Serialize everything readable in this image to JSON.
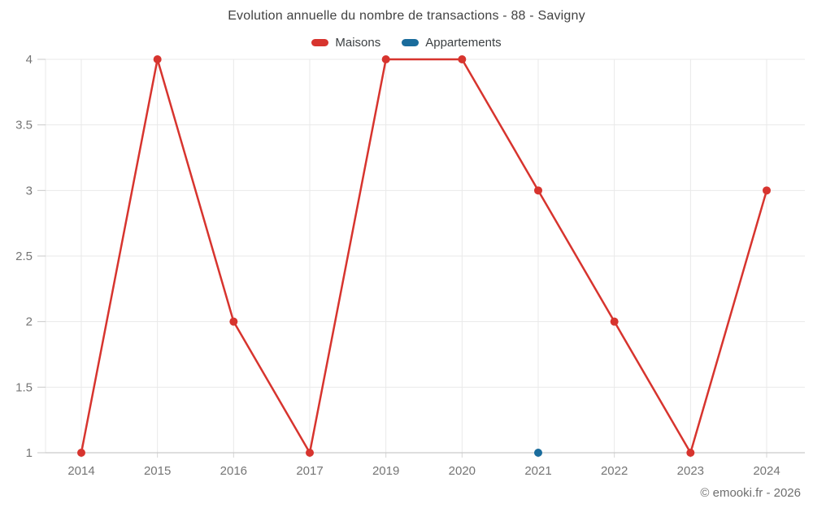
{
  "header": {
    "title": "Evolution annuelle du nombre de transactions - 88 - Savigny"
  },
  "footer": {
    "attribution": "© emooki.fr - 2026"
  },
  "chart_data": {
    "type": "line",
    "title": "Evolution annuelle du nombre de transactions - 88 - Savigny",
    "categories": [
      "2014",
      "2015",
      "2016",
      "2017",
      "2019",
      "2020",
      "2021",
      "2022",
      "2023",
      "2024"
    ],
    "series": [
      {
        "name": "Maisons",
        "color": "#d7342e",
        "values": [
          1,
          4,
          2,
          1,
          4,
          4,
          3,
          2,
          1,
          3
        ]
      },
      {
        "name": "Appartements",
        "color": "#1a6c9c",
        "values": [
          null,
          null,
          null,
          null,
          null,
          null,
          1,
          null,
          null,
          null
        ]
      }
    ],
    "xlabel": "",
    "ylabel": "",
    "ylim": [
      1,
      4
    ],
    "yticks": [
      1,
      1.5,
      2,
      2.5,
      3,
      3.5,
      4
    ],
    "grid": true,
    "legend_position": "top",
    "attribution": "© emooki.fr - 2026"
  },
  "style": {
    "grid_color": "#e9e9e9",
    "axis_color": "#c9c9c9",
    "tick_color": "#d6d6d6",
    "title_color": "#424242",
    "label_color": "#757575",
    "background": "#ffffff"
  }
}
